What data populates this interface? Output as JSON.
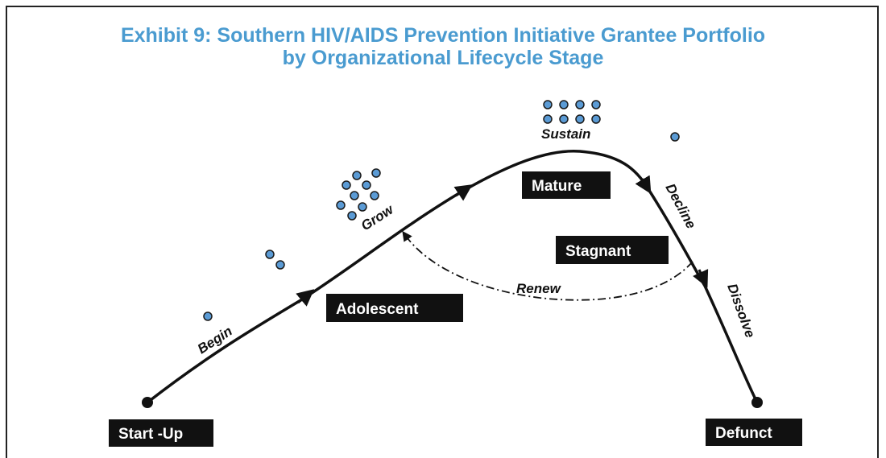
{
  "title": {
    "line1": "Exhibit 9: Southern HIV/AIDS Prevention Initiative Grantee Portfolio",
    "line2": "by Organizational Lifecycle Stage"
  },
  "stages": [
    "Start -Up",
    "Adolescent",
    "Mature",
    "Stagnant",
    "Defunct"
  ],
  "phases": [
    "Begin",
    "Grow",
    "Sustain",
    "Decline",
    "Dissolve",
    "Renew"
  ]
}
